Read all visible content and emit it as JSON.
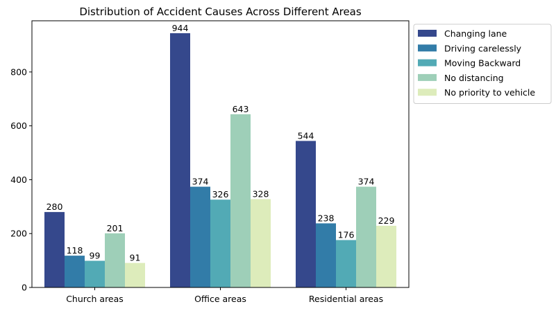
{
  "chart_data": {
    "type": "bar",
    "title": "Distribution of Accident Causes Across Different Areas",
    "xlabel": "",
    "ylabel": "",
    "categories": [
      "Church areas",
      "Office areas",
      "Residential areas"
    ],
    "ylim": [
      0,
      990
    ],
    "yticks": [
      0,
      200,
      400,
      600,
      800
    ],
    "grid": false,
    "legend_position": "outside-right-top",
    "series": [
      {
        "name": "Changing lane",
        "color": "#35488c",
        "values": [
          280,
          944,
          544
        ]
      },
      {
        "name": "Driving carelessly",
        "color": "#327ca8",
        "values": [
          118,
          374,
          238
        ]
      },
      {
        "name": "Moving Backward",
        "color": "#52aab5",
        "values": [
          99,
          326,
          176
        ]
      },
      {
        "name": "No distancing",
        "color": "#9ecfb8",
        "values": [
          201,
          643,
          374
        ]
      },
      {
        "name": "No priority to vehicle",
        "color": "#ddecbb",
        "values": [
          91,
          328,
          229
        ]
      }
    ]
  }
}
